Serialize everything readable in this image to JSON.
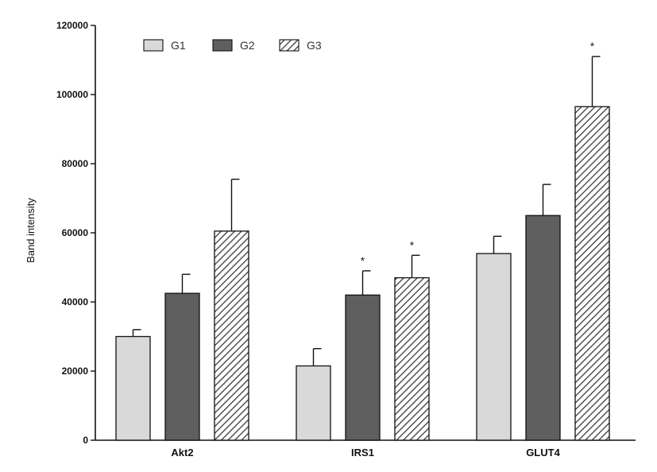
{
  "chart_data": {
    "type": "bar",
    "ylabel": "Band intensity",
    "ylim": [
      0,
      120000
    ],
    "yticks": [
      0,
      20000,
      40000,
      60000,
      80000,
      100000,
      120000
    ],
    "categories": [
      "Akt2",
      "IRS1",
      "GLUT4"
    ],
    "series": [
      {
        "name": "G1",
        "pattern": "solid",
        "color": "#d9d9d9",
        "values": [
          30000,
          21500,
          54000
        ],
        "errors": [
          2000,
          5000,
          5000
        ],
        "significance": [
          "",
          "",
          ""
        ]
      },
      {
        "name": "G2",
        "pattern": "solid",
        "color": "#5f5f5f",
        "values": [
          42500,
          42000,
          65000
        ],
        "errors": [
          5500,
          7000,
          9000
        ],
        "significance": [
          "",
          "*",
          ""
        ]
      },
      {
        "name": "G3",
        "pattern": "hatched",
        "color": "#ffffff",
        "values": [
          60500,
          47000,
          96500
        ],
        "errors": [
          15000,
          6500,
          14500
        ],
        "significance": [
          "",
          "*",
          "*"
        ]
      }
    ],
    "legend_position": "top-left",
    "grid": false
  }
}
